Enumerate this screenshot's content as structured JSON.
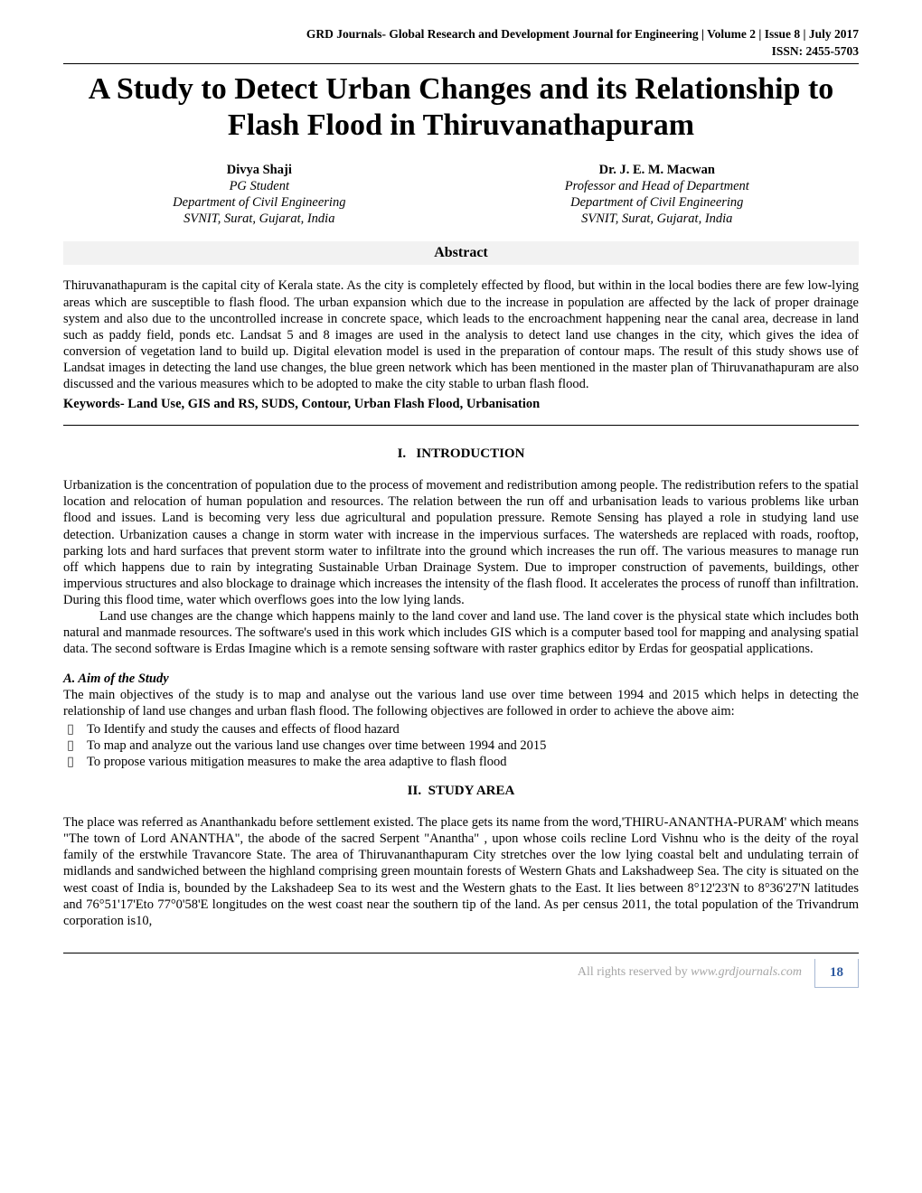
{
  "header": {
    "journal_line": "GRD Journals- Global Research and Development Journal for Engineering | Volume 2 | Issue 8 | July 2017",
    "issn": "ISSN: 2455-5703"
  },
  "title": "A Study to Detect Urban Changes and its Relationship to Flash Flood in Thiruvanathapuram",
  "authors": [
    {
      "name": "Divya Shaji",
      "role": "PG Student",
      "dept": "Department of Civil Engineering",
      "inst": "SVNIT, Surat, Gujarat, India"
    },
    {
      "name": "Dr. J. E. M. Macwan",
      "role": "Professor and Head of Department",
      "dept": "Department of Civil Engineering",
      "inst": "SVNIT, Surat, Gujarat, India"
    }
  ],
  "abstract": {
    "label": "Abstract",
    "body": "Thiruvanathapuram is the capital city of Kerala state. As the city is completely effected by flood, but within in the local bodies there are few low-lying areas which are susceptible to flash flood. The urban expansion which due to the increase in population are affected by the lack of proper drainage system and also due to the uncontrolled increase in concrete space, which leads to the encroachment happening near the canal area, decrease in land such as paddy field, ponds etc. Landsat 5 and 8 images are used in the analysis to detect land use changes in the city, which gives the idea of conversion of vegetation land to build up. Digital elevation model is used in the preparation of contour maps. The result of this study shows use of Landsat images in detecting the land use changes, the blue green network which has been mentioned in the master plan of Thiruvanathapuram are also discussed and  the various measures which to be adopted to make the city stable to urban flash flood.",
    "keywords": "Keywords- Land Use, GIS and RS, SUDS, Contour, Urban Flash Flood, Urbanisation"
  },
  "sections": {
    "intro": {
      "num": "I.",
      "title": "INTRODUCTION",
      "p1": "Urbanization is the concentration of population due to the process of movement and redistribution among people. The redistribution refers to the spatial location and relocation of human population and resources. The relation between the run off and urbanisation leads to various problems like urban flood and issues. Land is becoming very less due agricultural and population pressure. Remote Sensing has played a role in studying land use detection. Urbanization causes a change in storm water with increase in the impervious surfaces. The watersheds are replaced with roads, rooftop, parking lots and hard surfaces that prevent storm water to infiltrate into the ground which increases the run off. The various measures to manage run off which happens due to rain by integrating Sustainable Urban Drainage System. Due to improper construction of pavements, buildings, other impervious structures and also blockage to drainage which increases the intensity of the flash flood. It accelerates the process of runoff than infiltration. During this flood time, water which overflows goes into the low lying lands.",
      "p2": "Land use changes are the change which happens mainly to the land cover and land use. The land cover is the physical state which includes both natural and manmade resources. The software's used in this work which includes GIS which is a computer based tool for mapping and analysing spatial data. The second software is Erdas Imagine which is a remote sensing software with raster graphics editor by Erdas for geospatial applications."
    },
    "aim": {
      "label": "A.   Aim of the Study",
      "intro": "The main objectives of the study is to map and analyse out the various land use over time between 1994 and 2015 which helps in detecting the relationship of land use changes and urban flash flood. The following objectives are followed in order to achieve the above aim:",
      "items": [
        "To Identify and study the causes and effects of flood hazard",
        "To map and analyze out the various land use changes over time between 1994 and 2015",
        "To propose various mitigation measures to make the area adaptive to flash flood"
      ]
    },
    "study": {
      "num": "II.",
      "title": "STUDY AREA",
      "p1": "The place was referred as Ananthankadu before settlement existed. The place gets its name from the word,'THIRU-ANANTHA-PURAM' which means \"The town of Lord ANANTHA\", the abode of the sacred Serpent \"Anantha\" , upon whose coils recline Lord Vishnu who is the deity of the royal family of the erstwhile Travancore State. The area of Thiruvananthapuram City stretches over the low lying coastal belt and undulating terrain of midlands and sandwiched between the highland comprising green mountain forests of Western Ghats and Lakshadweep Sea. The city is situated on the west coast of India is, bounded by the Lakshadeep Sea to its west and the Western ghats to the East. It lies between 8°12'23'N to 8°36'27'N latitudes and 76°51'17'Eto 77°0'58'E longitudes on the west coast near the southern tip of the land. As per census 2011, the total population of the Trivandrum corporation is10,"
    }
  },
  "footer": {
    "rights": "All rights reserved by ",
    "site": "www.grdjournals.com",
    "page": "18"
  },
  "style": {
    "bg": "#ffffff",
    "text": "#000000",
    "footer_text_color": "#a6a6a6",
    "page_box_border": "#a6b8d4",
    "page_box_text": "#2e5aa0",
    "abstract_bar_bg": "#f2f2f2"
  }
}
